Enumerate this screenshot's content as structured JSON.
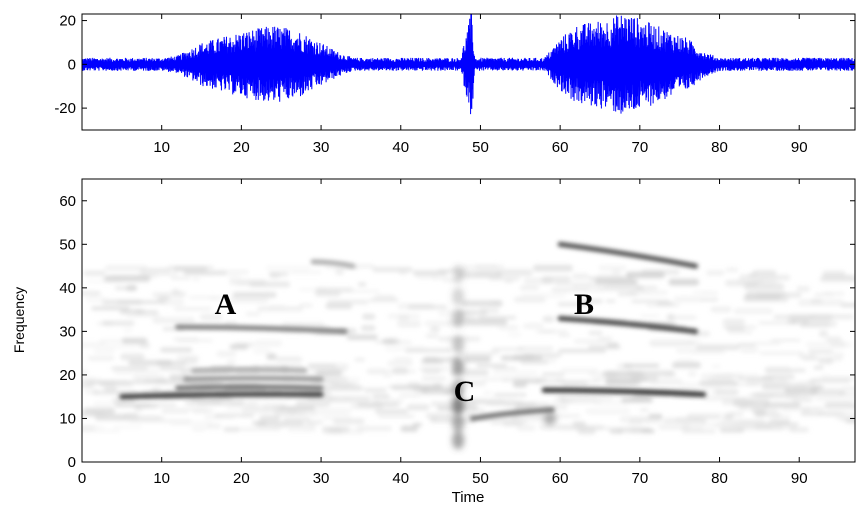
{
  "chart_data": [
    {
      "type": "line",
      "xlim": [
        0,
        97
      ],
      "ylim": [
        -30,
        23
      ],
      "xticks": [
        10,
        20,
        30,
        40,
        50,
        60,
        70,
        80,
        90
      ],
      "yticks": [
        20,
        0,
        -20
      ],
      "xtick_labels": [
        "10",
        "20",
        "30",
        "40",
        "50",
        "60",
        "70",
        "80",
        "90"
      ],
      "ytick_labels": [
        "20",
        "0",
        "-20"
      ],
      "line_color": "#0000ff",
      "series": [
        {
          "envelope": [
            [
              0,
              3
            ],
            [
              10,
              3
            ],
            [
              12,
              4
            ],
            [
              15,
              10
            ],
            [
              20,
              15
            ],
            [
              24,
              18
            ],
            [
              27,
              16
            ],
            [
              30,
              10
            ],
            [
              32,
              6
            ],
            [
              34,
              3
            ],
            [
              47.5,
              3
            ],
            [
              48.9,
              25
            ],
            [
              49.3,
              3
            ],
            [
              58,
              3
            ],
            [
              60,
              12
            ],
            [
              62,
              18
            ],
            [
              66,
              21
            ],
            [
              68,
              24
            ],
            [
              72,
              18
            ],
            [
              76,
              12
            ],
            [
              78,
              6
            ],
            [
              80,
              3
            ],
            [
              97,
              3
            ]
          ]
        }
      ]
    },
    {
      "type": "heatmap",
      "xlabel": "Time",
      "ylabel": "Frequency",
      "xlim": [
        0,
        97
      ],
      "ylim": [
        0,
        65
      ],
      "xticks": [
        0,
        10,
        20,
        30,
        40,
        50,
        60,
        70,
        80,
        90
      ],
      "yticks": [
        0,
        10,
        20,
        30,
        40,
        50,
        60
      ],
      "xtick_labels": [
        "0",
        "10",
        "20",
        "30",
        "40",
        "50",
        "60",
        "70",
        "80",
        "90"
      ],
      "ytick_labels": [
        "0",
        "10",
        "20",
        "30",
        "40",
        "50",
        "60"
      ],
      "colormap": "gray-reversed",
      "features": [
        {
          "name": "A-low",
          "x": [
            5,
            30
          ],
          "y": [
            15,
            15.5
          ],
          "intensity": 0.85
        },
        {
          "name": "A-stack",
          "x": [
            12,
            30
          ],
          "y": [
            17,
            17
          ],
          "intensity": 0.6
        },
        {
          "name": "A-stack-2",
          "x": [
            13,
            30
          ],
          "y": [
            19,
            19
          ],
          "intensity": 0.45
        },
        {
          "name": "A-stack-3",
          "x": [
            14,
            28
          ],
          "y": [
            21,
            21
          ],
          "intensity": 0.35
        },
        {
          "name": "A-mid",
          "x": [
            12,
            33
          ],
          "y": [
            31,
            30
          ],
          "intensity": 0.55
        },
        {
          "name": "A-high",
          "x": [
            29,
            34
          ],
          "y": [
            46,
            45
          ],
          "intensity": 0.35
        },
        {
          "name": "B-low",
          "x": [
            58,
            78
          ],
          "y": [
            16.5,
            15.5
          ],
          "intensity": 0.9
        },
        {
          "name": "B-mid",
          "x": [
            60,
            77
          ],
          "y": [
            33,
            30
          ],
          "intensity": 0.8
        },
        {
          "name": "B-high",
          "x": [
            60,
            77
          ],
          "y": [
            50,
            45
          ],
          "intensity": 0.75
        },
        {
          "name": "C-glide",
          "x": [
            49,
            59
          ],
          "y": [
            10,
            12
          ],
          "intensity": 0.6
        }
      ],
      "annotations": [
        {
          "text": "A",
          "x": 18,
          "y": 34
        },
        {
          "text": "B",
          "x": 63,
          "y": 34
        },
        {
          "text": "C",
          "x": 48,
          "y": 14
        }
      ]
    }
  ]
}
